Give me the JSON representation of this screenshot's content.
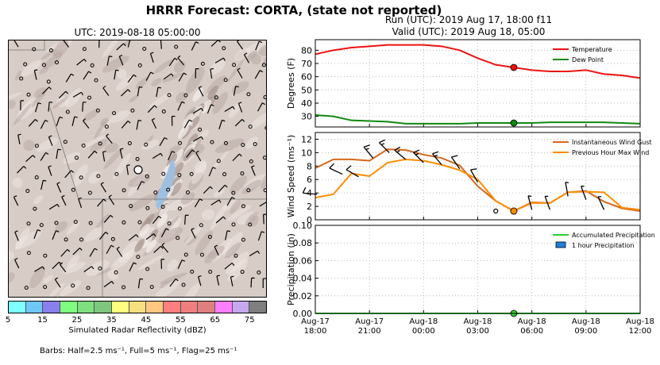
{
  "header": {
    "title": "HRRR Forecast: CORTA, (state not reported)",
    "run": "Run (UTC): 2019 Aug 17, 18:00 f11",
    "valid": "Valid (UTC): 2019 Aug 18, 05:00"
  },
  "map": {
    "title": "UTC: 2019-08-18 05:00:00"
  },
  "colorbar": {
    "label": "Simulated Radar Reflectivity (dBZ)",
    "ticks": [
      "5",
      "15",
      "25",
      "35",
      "45",
      "55",
      "65",
      "75"
    ],
    "colors": [
      "#7fffff",
      "#6fc7f7",
      "#8a7fef",
      "#7fff7f",
      "#7fe07f",
      "#7fc77f",
      "#ffff7f",
      "#f7e07f",
      "#ffc77f",
      "#ff7f7f",
      "#ef7f7f",
      "#df7f7f",
      "#ff7fff",
      "#c7a7ef",
      "#7f7f7f"
    ]
  },
  "barbs_note": "Barbs: Half=2.5 ms⁻¹, Full=5 ms⁻¹, Flag=25 ms⁻¹",
  "chart_data": [
    {
      "type": "line",
      "ylabel": "Degrees (F)",
      "ylim": [
        22,
        88
      ],
      "yticks": [
        30,
        40,
        50,
        60,
        70,
        80
      ],
      "grid": true,
      "legend": "top-right",
      "x": [
        0,
        1,
        2,
        3,
        4,
        5,
        6,
        7,
        8,
        9,
        10,
        11,
        12,
        13,
        14,
        15,
        16,
        17,
        18
      ],
      "series": [
        {
          "name": "Temperature",
          "color": "#ee1111",
          "values": [
            77,
            80,
            82,
            83,
            84,
            84,
            84,
            83,
            80,
            74,
            69,
            67,
            65,
            64,
            64,
            65,
            62,
            61,
            59
          ]
        },
        {
          "name": "Dew Point",
          "color": "#118811",
          "values": [
            31,
            30,
            27,
            26.5,
            26,
            24.5,
            24.5,
            24.5,
            24.5,
            25,
            25,
            25,
            25,
            25.5,
            25.5,
            25.5,
            25.5,
            25,
            24.5
          ]
        }
      ],
      "marker_index": 11
    },
    {
      "type": "line",
      "ylabel": "Wind Speed (ms⁻¹)",
      "ylim": [
        0,
        13
      ],
      "yticks": [
        0,
        2,
        4,
        6,
        8,
        10,
        12
      ],
      "grid": true,
      "legend": "top-right",
      "x": [
        0,
        1,
        2,
        3,
        4,
        5,
        6,
        7,
        8,
        9,
        10,
        11,
        12,
        13,
        14,
        15,
        16,
        17,
        18
      ],
      "series": [
        {
          "name": "Instantaneous Wind Gust",
          "color": "#d2691e",
          "values": [
            7.7,
            9.0,
            9.0,
            8.8,
            10.5,
            10.4,
            9.7,
            9.2,
            8.1,
            5.0,
            2.8,
            1.3,
            2.6,
            2.5,
            4.1,
            4.3,
            2.7,
            1.7,
            1.3
          ]
        },
        {
          "name": "Previous Hour Max Wind",
          "color": "#ff8c00",
          "values": [
            3.3,
            3.8,
            6.9,
            6.5,
            8.5,
            9.0,
            8.8,
            8.2,
            7.4,
            6.0,
            2.8,
            1.3,
            2.5,
            2.5,
            4.1,
            4.2,
            4.1,
            1.8,
            1.5
          ]
        }
      ],
      "barbs": [
        {
          "x": 0.1,
          "y": 3.8,
          "dir": 275,
          "speed": 7
        },
        {
          "x": 1.5,
          "y": 6.8,
          "dir": 295,
          "speed": 6
        },
        {
          "x": 2.4,
          "y": 6.4,
          "dir": 300,
          "speed": 6
        },
        {
          "x": 3.2,
          "y": 9.2,
          "dir": 320,
          "speed": 8
        },
        {
          "x": 4.1,
          "y": 10.0,
          "dir": 315,
          "speed": 9
        },
        {
          "x": 5.0,
          "y": 9.0,
          "dir": 310,
          "speed": 9
        },
        {
          "x": 6.0,
          "y": 8.5,
          "dir": 315,
          "speed": 8
        },
        {
          "x": 7.0,
          "y": 8.2,
          "dir": 320,
          "speed": 8
        },
        {
          "x": 8.0,
          "y": 7.6,
          "dir": 325,
          "speed": 7
        },
        {
          "x": 9.0,
          "y": 5.6,
          "dir": 330,
          "speed": 6
        },
        {
          "x": 12.0,
          "y": 1.5,
          "dir": 345,
          "speed": 3
        },
        {
          "x": 13.0,
          "y": 1.5,
          "dir": 340,
          "speed": 3
        },
        {
          "x": 14.0,
          "y": 3.5,
          "dir": 350,
          "speed": 4
        },
        {
          "x": 15.0,
          "y": 3.0,
          "dir": 340,
          "speed": 4
        },
        {
          "x": 16.0,
          "y": 1.5,
          "dir": 335,
          "speed": 3
        }
      ],
      "calm": [
        {
          "x": 10.0,
          "y": 1.3
        }
      ],
      "marker_index": 11
    },
    {
      "type": "area",
      "ylabel": "Precipitation (in)",
      "ylim": [
        0,
        0.1
      ],
      "yticks": [
        "0.00",
        "0.02",
        "0.04",
        "0.06",
        "0.08",
        "0.10"
      ],
      "grid": true,
      "legend": "top-right",
      "x": [
        0,
        1,
        2,
        3,
        4,
        5,
        6,
        7,
        8,
        9,
        10,
        11,
        12,
        13,
        14,
        15,
        16,
        17,
        18
      ],
      "series": [
        {
          "name": "Accumulated Precipitation",
          "color": "#33cc33",
          "values": [
            0,
            0,
            0,
            0,
            0,
            0,
            0,
            0,
            0,
            0,
            0,
            0,
            0,
            0,
            0,
            0,
            0,
            0,
            0
          ]
        },
        {
          "name": "1 hour Precipitation",
          "color": "#1e7fdd",
          "values": [
            0,
            0,
            0,
            0,
            0,
            0,
            0,
            0,
            0,
            0,
            0,
            0,
            0,
            0,
            0,
            0,
            0,
            0,
            0
          ]
        }
      ],
      "marker_index": 11,
      "xtick_labels": [
        [
          "Aug-17",
          "18:00"
        ],
        [
          "Aug-17",
          "21:00"
        ],
        [
          "Aug-18",
          "00:00"
        ],
        [
          "Aug-18",
          "03:00"
        ],
        [
          "Aug-18",
          "06:00"
        ],
        [
          "Aug-18",
          "09:00"
        ],
        [
          "Aug-18",
          "12:00"
        ]
      ],
      "xtick_values": [
        0,
        3,
        6,
        9,
        12,
        15,
        18
      ]
    }
  ]
}
